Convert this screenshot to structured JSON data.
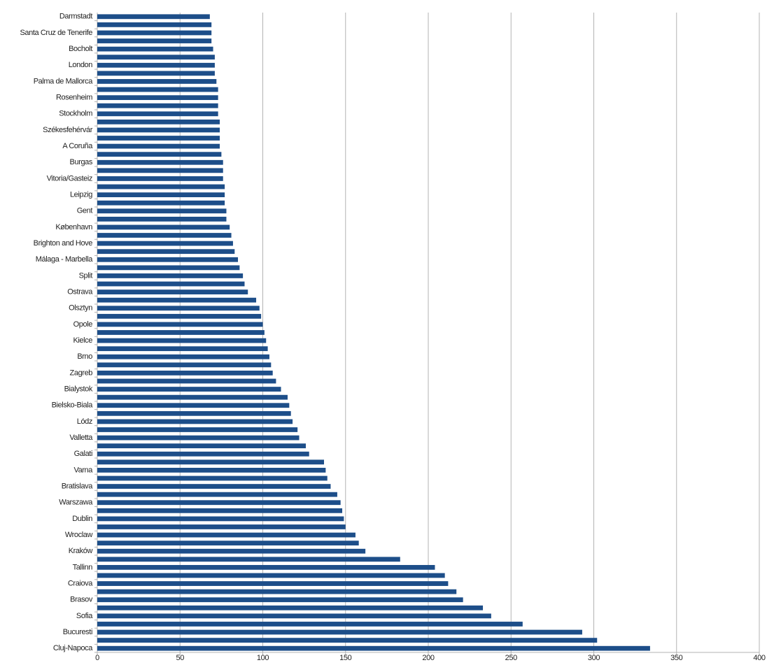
{
  "chart_data": {
    "type": "barh",
    "categories": [
      "Cluj-Napoca",
      null,
      "Bucuresti",
      null,
      "Sofia",
      null,
      "Brasov",
      null,
      "Craiova",
      null,
      "Tallinn",
      null,
      "Kraków",
      null,
      "Wroclaw",
      null,
      "Dublin",
      null,
      "Warszawa",
      null,
      "Bratislava",
      null,
      "Varna",
      null,
      "Galati",
      null,
      "Valletta",
      null,
      "Lódz",
      null,
      "Bielsko-Biala",
      null,
      "Bialystok",
      null,
      "Zagreb",
      null,
      "Brno",
      null,
      "Kielce",
      null,
      "Opole",
      null,
      "Olsztyn",
      null,
      "Ostrava",
      null,
      "Split",
      null,
      "Málaga - Marbella",
      null,
      "Brighton and Hove",
      null,
      "København",
      null,
      "Gent",
      null,
      "Leipzig",
      null,
      "Vitoria/Gasteiz",
      null,
      "Burgas",
      null,
      "A Coruña",
      null,
      "Székesfehérvár",
      null,
      "Stockholm",
      null,
      "Rosenheim",
      null,
      "Palma de Mallorca",
      null,
      "London",
      null,
      "Bocholt",
      null,
      "Santa Cruz de Tenerife",
      null,
      "Darmstadt"
    ],
    "values": [
      334,
      302,
      293,
      257,
      238,
      233,
      221,
      217,
      212,
      210,
      204,
      183,
      162,
      158,
      156,
      150,
      149,
      148,
      147,
      145,
      141,
      139,
      138,
      137,
      128,
      126,
      122,
      121,
      118,
      117,
      116,
      115,
      111,
      108,
      106,
      105,
      104,
      103,
      102,
      101,
      100,
      99,
      98,
      96,
      91,
      89,
      88,
      86,
      85,
      83,
      82,
      81,
      80,
      78,
      78,
      77,
      77,
      77,
      76,
      76,
      76,
      75,
      74,
      74,
      74,
      74,
      73,
      73,
      73,
      73,
      72,
      71,
      71,
      71,
      70,
      69,
      69,
      69,
      68
    ],
    "color": "#1d4e89",
    "xlim": [
      0,
      400
    ],
    "xticks": [
      0,
      50,
      100,
      150,
      200,
      250,
      300,
      350,
      400
    ],
    "grid": true
  }
}
